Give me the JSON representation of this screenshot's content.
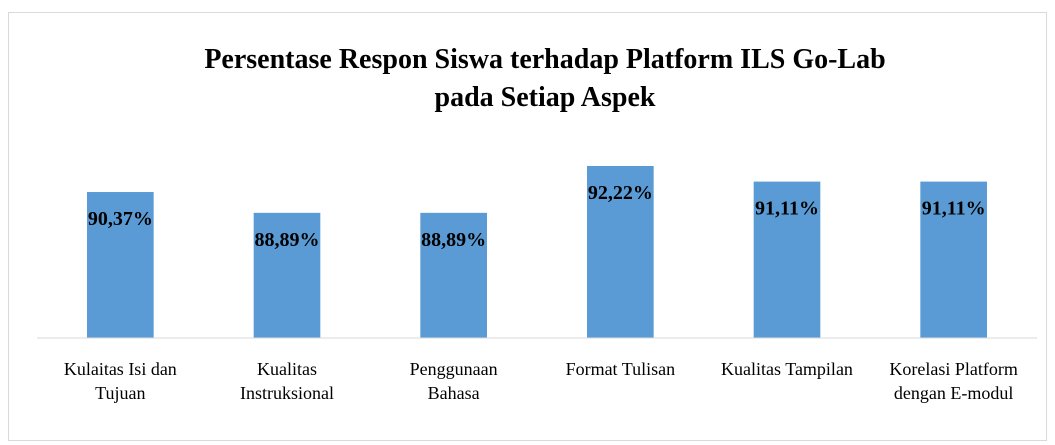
{
  "chart_data": {
    "type": "bar",
    "title": "Persentase Respon Siswa terhadap Platform ILS Go-Lab pada Setiap Aspek",
    "categories": [
      "Kulaitas Isi dan Tujuan",
      "Kualitas Instruksional",
      "Penggunaan Bahasa",
      "Format Tulisan",
      "Kualitas Tampilan",
      "Korelasi Platform dengan E-modul"
    ],
    "values": [
      90.37,
      88.89,
      88.89,
      92.22,
      91.11,
      91.11
    ],
    "value_labels": [
      "90,37%",
      "88,89%",
      "88,89%",
      "92,22%",
      "91,11%",
      "91,11%"
    ],
    "color": "#5b9bd5",
    "ylim": [
      80,
      93
    ]
  }
}
